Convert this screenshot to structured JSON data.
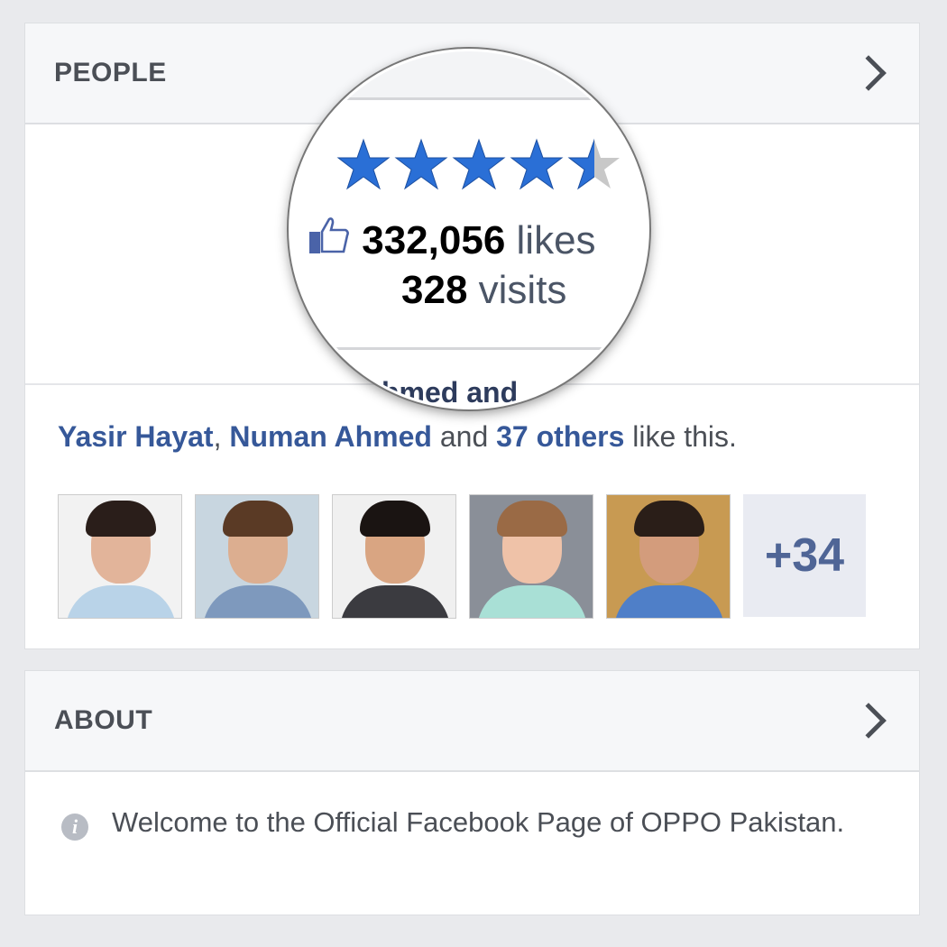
{
  "people": {
    "title": "PEOPLE",
    "rating": 4.5,
    "likes_count": "332,056",
    "likes_label": "likes",
    "visits_count": "328",
    "visits_label": "visits",
    "cut_text": "hmed and",
    "friend1": "Yasir Hayat",
    "sep": ", ",
    "friend2": "Numan Ahmed",
    "and": " and ",
    "others": "37 others",
    "suffix": " like this.",
    "avatars": [
      {
        "skin": "#e2b49a",
        "hair": "#2a1e1a",
        "shirt": "#b9d3e8",
        "bg": "#f2f2f2"
      },
      {
        "skin": "#dcae90",
        "hair": "#5a3a25",
        "shirt": "#7e99bd",
        "bg": "#c8d6e0"
      },
      {
        "skin": "#d9a582",
        "hair": "#1a1412",
        "shirt": "#3b3b40",
        "bg": "#f0f0f0"
      },
      {
        "skin": "#efc2a8",
        "hair": "#9a6a45",
        "shirt": "#a9e0d6",
        "bg": "#8a8f98"
      },
      {
        "skin": "#d39c7c",
        "hair": "#2a1e18",
        "shirt": "#4f7fc8",
        "bg": "#c89a52"
      }
    ],
    "more": "+34"
  },
  "about": {
    "title": "ABOUT",
    "text": "Welcome to the Official Facebook Page of OPPO Pakistan.",
    "icon": "info-icon"
  },
  "colors": {
    "star": "#2a6fd6",
    "link": "#365899"
  }
}
